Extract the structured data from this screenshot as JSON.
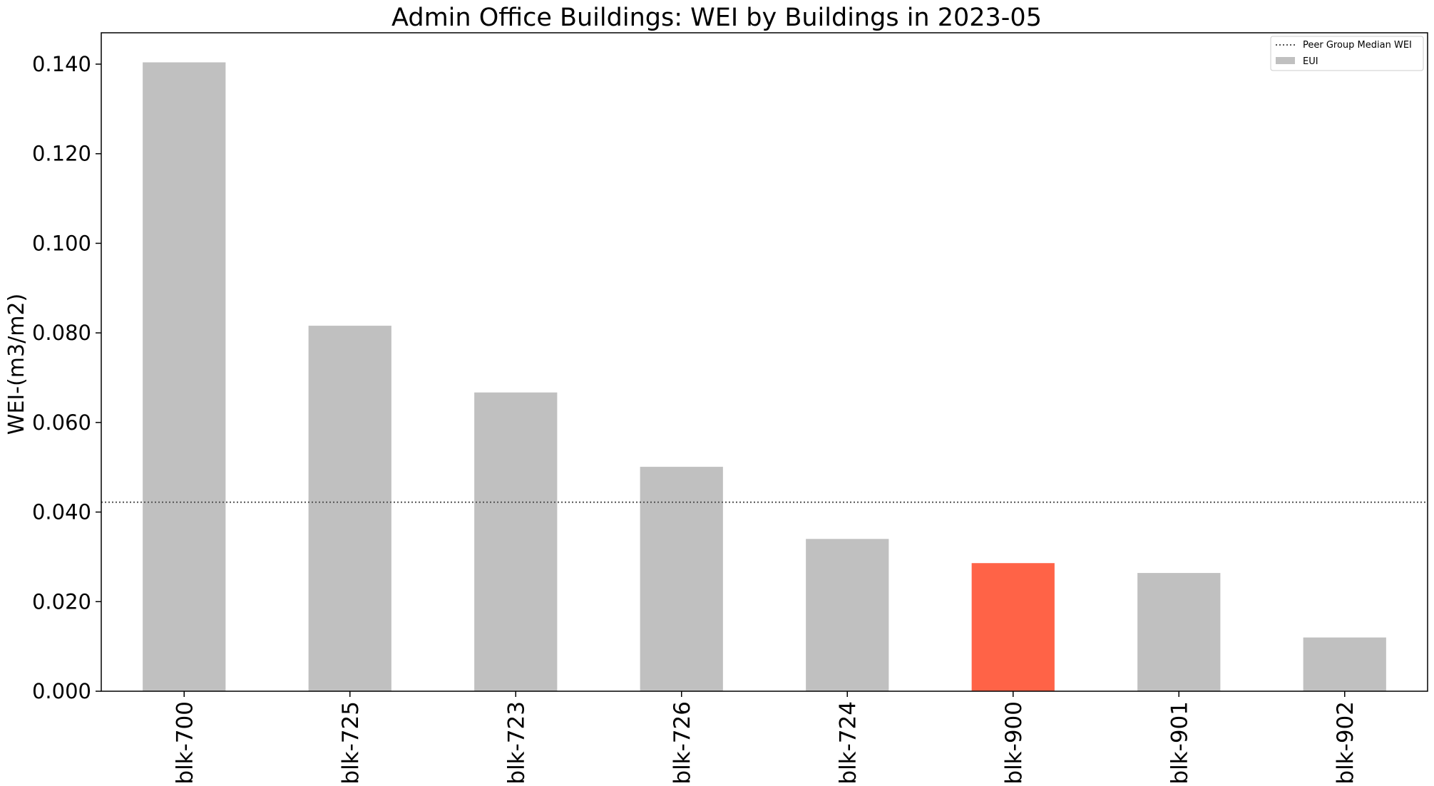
{
  "chart_data": {
    "type": "bar",
    "title": "Admin Office Buildings: WEI by Buildings in 2023-05",
    "xlabel": "",
    "ylabel": "WEI-(m3/m2)",
    "categories": [
      "blk-700",
      "blk-725",
      "blk-723",
      "blk-726",
      "blk-724",
      "blk-900",
      "blk-901",
      "blk-902"
    ],
    "values": [
      0.1404,
      0.0816,
      0.0667,
      0.0501,
      0.034,
      0.0286,
      0.0264,
      0.012
    ],
    "highlight_category": "blk-900",
    "ylim": [
      0,
      0.147
    ],
    "yticks": [
      "0.000",
      "0.020",
      "0.040",
      "0.060",
      "0.080",
      "0.100",
      "0.120",
      "0.140"
    ],
    "ytick_values": [
      0,
      0.02,
      0.04,
      0.06,
      0.08,
      0.1,
      0.12,
      0.14
    ],
    "reference_line": {
      "name": "Peer Group Median WEI",
      "value": 0.0422,
      "style": "dotted"
    },
    "legend": {
      "placement": "top-right",
      "entries": [
        "Peer Group Median WEI",
        "EUI"
      ]
    },
    "colors": {
      "bar": "#c0c0c0",
      "highlight": "#ff6347",
      "reference_line": "#555555"
    },
    "grid": false
  }
}
